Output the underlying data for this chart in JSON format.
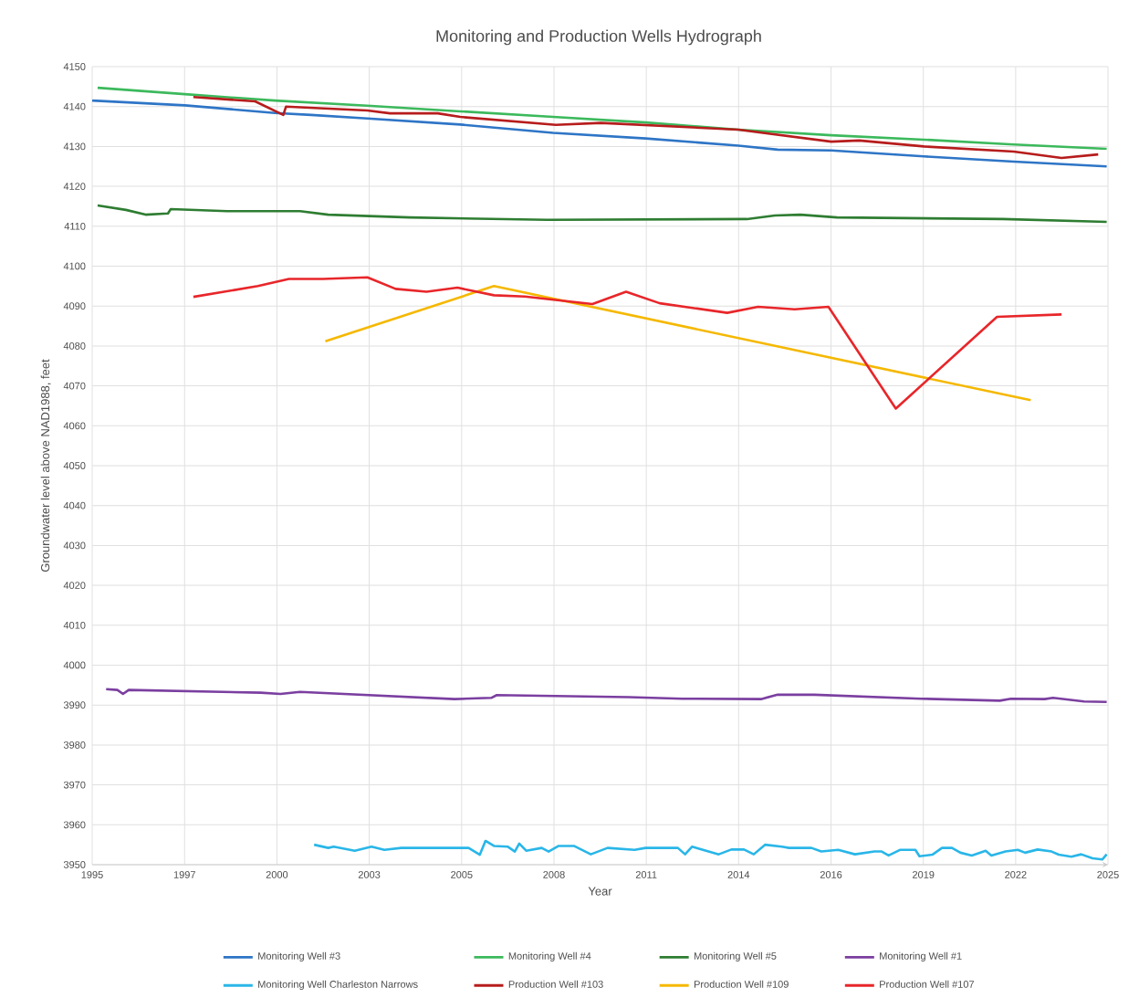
{
  "chart_data": {
    "type": "line",
    "title": "Monitoring and Production Wells Hydrograph",
    "xlabel": "Year",
    "ylabel": "Groundwater level above NAD1988, feet",
    "xlim": [
      "1995-01-01",
      "2025-02-15"
    ],
    "ylim": [
      3950,
      4150
    ],
    "xticks": [
      {
        "value": "1995-01-01",
        "label": "1995"
      },
      {
        "value": "1997-09-28",
        "label": "1997"
      },
      {
        "value": "2000-06-24",
        "label": "2000"
      },
      {
        "value": "2003-03-21",
        "label": "2003"
      },
      {
        "value": "2005-12-16",
        "label": "2005"
      },
      {
        "value": "2008-09-11",
        "label": "2008"
      },
      {
        "value": "2011-06-08",
        "label": "2011"
      },
      {
        "value": "2014-03-04",
        "label": "2014"
      },
      {
        "value": "2016-11-29",
        "label": "2016"
      },
      {
        "value": "2019-08-26",
        "label": "2019"
      },
      {
        "value": "2022-05-22",
        "label": "2022"
      },
      {
        "value": "2025-02-15",
        "label": "2025"
      }
    ],
    "yticks": [
      3950,
      3960,
      3970,
      3980,
      3990,
      4000,
      4010,
      4020,
      4030,
      4040,
      4050,
      4060,
      4070,
      4080,
      4090,
      4100,
      4110,
      4120,
      4130,
      4140,
      4150
    ],
    "grid": true,
    "legend": "bottom",
    "line_style": "solid",
    "series": [
      {
        "name": "Monitoring Well #3",
        "color": "#2e75c6",
        "x": [
          "1995-01",
          "1997-10",
          "2000-06",
          "2001-07",
          "2003-03",
          "2005-12",
          "2008-09",
          "2011-06",
          "2014-03",
          "2015-05",
          "2016-12",
          "2019-09",
          "2022-05",
          "2025-02"
        ],
        "values": [
          4141.5,
          4140.3,
          4138.4,
          4137.9,
          4137.0,
          4135.5,
          4133.4,
          4132.0,
          4130.2,
          4129.2,
          4129.0,
          4127.5,
          4126.2,
          4125.0
        ]
      },
      {
        "name": "Monitoring Well #4",
        "color": "#3cb95c",
        "x": [
          "1995-03",
          "1997-10",
          "2000-06",
          "2003-03",
          "2005-12",
          "2008-09",
          "2011-06",
          "2014-03",
          "2016-12",
          "2019-09",
          "2022-05",
          "2025-02"
        ],
        "values": [
          4144.7,
          4143.1,
          4141.5,
          4140.2,
          4138.8,
          4137.4,
          4136.0,
          4134.2,
          4132.8,
          4131.7,
          4130.5,
          4129.4
        ]
      },
      {
        "name": "Monitoring Well #5",
        "color": "#2e7d32",
        "x": [
          "1995-03",
          "1996-01",
          "1996-08",
          "1997-04",
          "1997-05",
          "1999-01",
          "2001-03",
          "2002-01",
          "2004-06",
          "2008-07",
          "2014-06",
          "2015-04",
          "2016-01",
          "2017-02",
          "2022-01",
          "2025-02"
        ],
        "values": [
          4115.2,
          4114.1,
          4112.9,
          4113.2,
          4114.3,
          4113.8,
          4113.8,
          4112.9,
          4112.2,
          4111.6,
          4111.8,
          4112.7,
          4112.9,
          4112.2,
          4111.8,
          4111.1
        ]
      },
      {
        "name": "Monitoring Well #1",
        "color": "#7b3fa0",
        "x": [
          "1995-06",
          "1995-10",
          "1995-12",
          "1996-02",
          "2000-01",
          "2000-08",
          "2001-03",
          "2005-10",
          "2006-11",
          "2007-01",
          "2010-12",
          "2012-07",
          "2014-11",
          "2015-05",
          "2016-06",
          "2019-08",
          "2021-12",
          "2022-04",
          "2023-04",
          "2023-07",
          "2024-06",
          "2025-02"
        ],
        "values": [
          3994.0,
          3993.8,
          3992.8,
          3993.8,
          3993.1,
          3992.8,
          3993.3,
          3991.5,
          3991.8,
          3992.5,
          3992.0,
          3991.6,
          3991.5,
          3992.6,
          3992.6,
          3991.6,
          3991.1,
          3991.6,
          3991.5,
          3991.8,
          3990.9,
          3990.8
        ]
      },
      {
        "name": "Monitoring Well Charleston Narrows",
        "color": "#29b6e8",
        "x": [
          "2001-08-01",
          "2002-01-01",
          "2002-03-01",
          "2002-10-15",
          "2003-04-15",
          "2003-09-01",
          "2004-03-01",
          "2006-03-01",
          "2006-07-01",
          "2006-09-01",
          "2006-12-01",
          "2007-05-01",
          "2007-07-15",
          "2007-09-01",
          "2007-11-15",
          "2008-05-01",
          "2008-07-15",
          "2008-11-01",
          "2009-04-15",
          "2009-10-15",
          "2010-04-15",
          "2011-02-01",
          "2011-06-01",
          "2012-05-15",
          "2012-08-01",
          "2012-10-15",
          "2013-08-01",
          "2013-12-15",
          "2014-05-01",
          "2014-08-15",
          "2014-12-15",
          "2015-06-15",
          "2015-09-01",
          "2016-05-01",
          "2016-08-15",
          "2017-02-15",
          "2017-08-15",
          "2018-03-15",
          "2018-06-01",
          "2018-08-15",
          "2018-12-15",
          "2019-06-01",
          "2019-07-15",
          "2019-12-01",
          "2020-03-15",
          "2020-07-01",
          "2020-10-01",
          "2021-02-01",
          "2021-07-01",
          "2021-09-01",
          "2022-02-01",
          "2022-06-15",
          "2022-09-01",
          "2023-01-15",
          "2023-06-15",
          "2023-09-01",
          "2024-01-15",
          "2024-05-01",
          "2024-09-01",
          "2024-12-15",
          "2025-02-01"
        ],
        "values": [
          3955.0,
          3954.2,
          3954.5,
          3953.5,
          3954.5,
          3953.7,
          3954.2,
          3954.2,
          3952.5,
          3956.0,
          3954.7,
          3954.5,
          3953.3,
          3955.3,
          3953.5,
          3954.2,
          3953.3,
          3954.7,
          3954.7,
          3952.6,
          3954.2,
          3953.7,
          3954.2,
          3954.2,
          3952.6,
          3954.5,
          3952.6,
          3953.8,
          3953.8,
          3952.6,
          3955.0,
          3954.5,
          3954.2,
          3954.2,
          3953.3,
          3953.7,
          3952.6,
          3953.3,
          3953.3,
          3952.3,
          3953.7,
          3953.7,
          3952.1,
          3952.5,
          3954.2,
          3954.2,
          3953.0,
          3952.3,
          3953.5,
          3952.3,
          3953.3,
          3953.7,
          3953.0,
          3953.8,
          3953.3,
          3952.5,
          3952.0,
          3952.6,
          3951.6,
          3951.3,
          3952.6
        ]
      },
      {
        "name": "Production Well #103",
        "color": "#b71c1c",
        "x": [
          "1998-01",
          "1999-11",
          "2000-09",
          "2000-10",
          "2003-03",
          "2003-11",
          "2005-04",
          "2005-12",
          "2008-10",
          "2010-02",
          "2014-03",
          "2016-12",
          "2017-10",
          "2019-09",
          "2022-05",
          "2023-10",
          "2024-11"
        ],
        "values": [
          4142.4,
          4141.3,
          4137.9,
          4140.0,
          4139.0,
          4138.3,
          4138.3,
          4137.4,
          4135.4,
          4135.9,
          4134.2,
          4131.2,
          4131.5,
          4130.0,
          4128.7,
          4127.1,
          4128.0
        ]
      },
      {
        "name": "Production Well #109",
        "color": "#f5b800",
        "x": [
          "2001-12",
          "2006-12",
          "2022-11"
        ],
        "values": [
          4081.2,
          4095.0,
          4066.4
        ]
      },
      {
        "name": "Production Well #107",
        "color": "#e8262a",
        "x": [
          "1998-01",
          "1999-12",
          "2000-11",
          "2001-11",
          "2003-03",
          "2004-01",
          "2004-12",
          "2005-11",
          "2006-12",
          "2007-11",
          "2009-11",
          "2010-11",
          "2011-11",
          "2013-11",
          "2014-10",
          "2015-11",
          "2016-11",
          "2018-11",
          "2021-11",
          "2023-10"
        ],
        "values": [
          4092.3,
          4095.0,
          4096.8,
          4096.8,
          4097.2,
          4094.3,
          4093.6,
          4094.6,
          4092.7,
          4092.4,
          4090.5,
          4093.6,
          4090.7,
          4088.3,
          4089.8,
          4089.2,
          4089.8,
          4064.3,
          4087.3,
          4087.9
        ]
      }
    ]
  }
}
